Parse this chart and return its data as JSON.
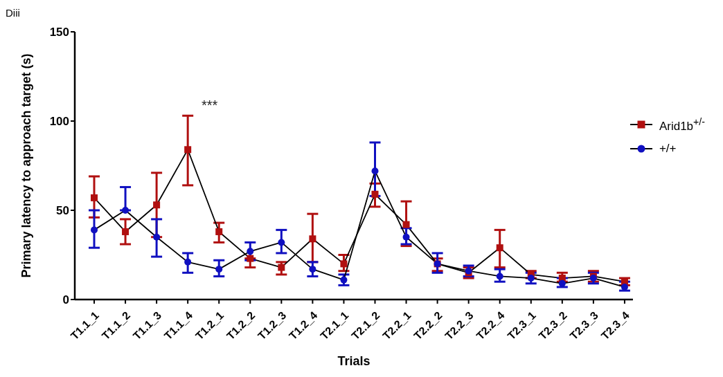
{
  "chart_data": {
    "type": "line",
    "xlabel": "Trials",
    "ylabel": "Primary latency to approach target (s)",
    "categories": [
      "T1.1_1",
      "T1.1_2",
      "T1.1_3",
      "T1.1_4",
      "T1.2_1",
      "T1.2_2",
      "T1.2_3",
      "T1.2_4",
      "T2.1_1",
      "T2.1_2",
      "T2.2_1",
      "T2.2_2",
      "T2.2_3",
      "T2.2_4",
      "T2.3_1",
      "T2.3_2",
      "T2.3_3",
      "T2.3_4"
    ],
    "ylim": [
      0,
      150
    ],
    "yticks": [
      0,
      50,
      100,
      150
    ],
    "legend": "top right",
    "line_style": "solid",
    "series": [
      {
        "name": "Arid1b$^{+/-}$",
        "color": "#b01010",
        "marker": "square",
        "values": [
          57,
          38,
          53,
          84,
          38,
          23,
          18,
          34,
          20,
          59,
          42,
          20,
          15,
          29,
          14,
          12,
          13,
          10
        ],
        "errors": [
          [
            46,
            69
          ],
          [
            31,
            45
          ],
          [
            35,
            71
          ],
          [
            64,
            103
          ],
          [
            32,
            43
          ],
          [
            18,
            23
          ],
          [
            14,
            21
          ],
          [
            21,
            48
          ],
          [
            16,
            25
          ],
          [
            52,
            65
          ],
          [
            30,
            55
          ],
          [
            16,
            23
          ],
          [
            12,
            18
          ],
          [
            18,
            39
          ],
          [
            12,
            16
          ],
          [
            10,
            15
          ],
          [
            10,
            16
          ],
          [
            8,
            12
          ]
        ]
      },
      {
        "name": "+/+",
        "color": "#1010c0",
        "marker": "circle",
        "values": [
          39,
          50,
          35,
          21,
          17,
          27,
          32,
          17,
          11,
          72,
          35,
          20,
          16,
          13,
          12,
          9,
          12,
          7
        ],
        "errors": [
          [
            29,
            50
          ],
          [
            50,
            63
          ],
          [
            24,
            45
          ],
          [
            15,
            26
          ],
          [
            13,
            22
          ],
          [
            22,
            32
          ],
          [
            26,
            39
          ],
          [
            13,
            21
          ],
          [
            8,
            14
          ],
          [
            58,
            88
          ],
          [
            31,
            40
          ],
          [
            15,
            26
          ],
          [
            13,
            19
          ],
          [
            10,
            17
          ],
          [
            9,
            15
          ],
          [
            7,
            12
          ],
          [
            9,
            15
          ],
          [
            5,
            10
          ]
        ]
      }
    ],
    "annotations": [
      "Diii",
      "***"
    ]
  }
}
